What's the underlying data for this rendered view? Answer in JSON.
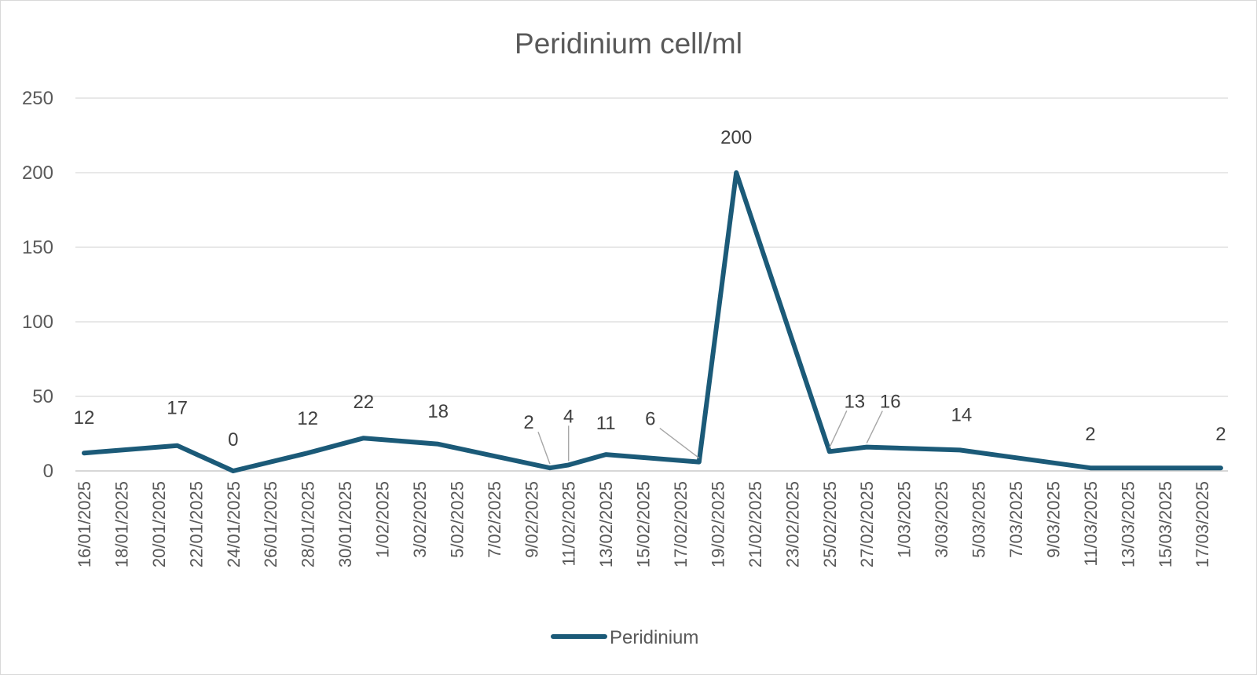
{
  "chart_data": {
    "type": "line",
    "title": "Peridinium cell/ml",
    "xlabel": "",
    "ylabel": "",
    "ylim": [
      0,
      250
    ],
    "yticks": [
      0,
      50,
      100,
      150,
      200,
      250
    ],
    "grid": true,
    "legend_position": "bottom",
    "x_axis_start": "16/01/2025",
    "x_axis_end": "18/03/2025",
    "x_tick_labels": [
      "16/01/2025",
      "18/01/2025",
      "20/01/2025",
      "22/01/2025",
      "24/01/2025",
      "26/01/2025",
      "28/01/2025",
      "30/01/2025",
      "1/02/2025",
      "3/02/2025",
      "5/02/2025",
      "7/02/2025",
      "9/02/2025",
      "11/02/2025",
      "13/02/2025",
      "15/02/2025",
      "17/02/2025",
      "19/02/2025",
      "21/02/2025",
      "23/02/2025",
      "25/02/2025",
      "27/02/2025",
      "1/03/2025",
      "3/03/2025",
      "5/03/2025",
      "7/03/2025",
      "9/03/2025",
      "11/03/2025",
      "13/03/2025",
      "15/03/2025",
      "17/03/2025"
    ],
    "series": [
      {
        "name": "Peridinium",
        "color": "#1b5a78",
        "points": [
          {
            "x": "16/01/2025",
            "y": 12
          },
          {
            "x": "21/01/2025",
            "y": 17
          },
          {
            "x": "24/01/2025",
            "y": 0
          },
          {
            "x": "28/01/2025",
            "y": 12
          },
          {
            "x": "31/01/2025",
            "y": 22
          },
          {
            "x": "4/02/2025",
            "y": 18
          },
          {
            "x": "10/02/2025",
            "y": 2
          },
          {
            "x": "11/02/2025",
            "y": 4
          },
          {
            "x": "13/02/2025",
            "y": 11
          },
          {
            "x": "18/02/2025",
            "y": 6
          },
          {
            "x": "20/02/2025",
            "y": 200
          },
          {
            "x": "25/02/2025",
            "y": 13
          },
          {
            "x": "27/02/2025",
            "y": 16
          },
          {
            "x": "4/03/2025",
            "y": 14
          },
          {
            "x": "11/03/2025",
            "y": 2
          },
          {
            "x": "18/03/2025",
            "y": 2
          }
        ]
      }
    ]
  }
}
